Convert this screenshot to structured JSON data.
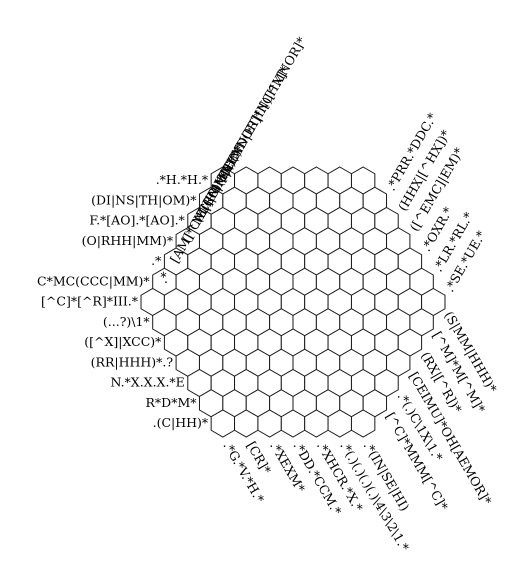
{
  "puzzle": {
    "grid_side": 7,
    "cell_fill": "#ffffff",
    "line_color": "#1a1a1a",
    "text_color": "#000000",
    "clues_left": [
      ".*H.*H.*",
      "(DI|NS|TH|OM)*",
      "F.*[AO].*[AO].*",
      "(O|RHH|MM)*",
      ".*",
      "C*MC(CCC|MM)*",
      "[^C]*[^R]*III.*",
      "(...?)\\1*",
      "([^X]|XCC)*",
      "(RR|HHH)*.?",
      "N.*X.X.X.*E",
      "R*D*M*",
      ".(C|HH)*"
    ],
    "clues_top": [
      "(ND|ET|IN)[^X]*",
      "[CHMNOR]*I[CHMNOR]*",
      "P+(..)\\1.*",
      "(E|CR|MN)*",
      "([^MC]|MM|CC)*",
      "[AM]*CM(RC)*R?",
      ".*",
      ".*PRR.*DDC.*",
      "(HHX|[^HX])*",
      "([^EMC]|EM)*",
      ".*OXR.*",
      ".*LR.*RL.*",
      ".*SE.*UE.*"
    ],
    "clues_bottom": [
      ".*G.*V.*H.*",
      "[CR]*",
      ".*XEXM*",
      ".*DD.*CCM.*",
      ".*XHCR.*X.*",
      ".*(.)(.)(.)(.)\\4\\3\\2\\1.*",
      ".*(IN|SE|HI)",
      "[^C]*MMM[^C]*",
      ".*(.)C\\1X\\1.*",
      "[CEIMU]*OH[AEMOR]*",
      "(RX|[^R])*",
      "[^M]*M[^M]*",
      "(S|MM|HHH)*"
    ]
  }
}
